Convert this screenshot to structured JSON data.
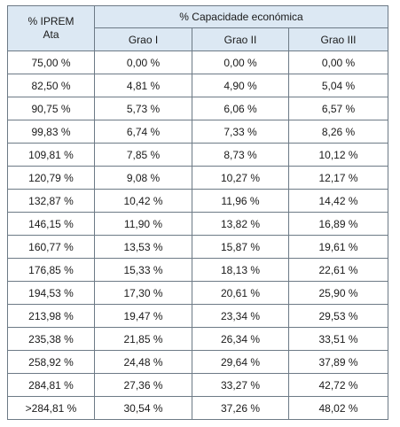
{
  "table": {
    "header": {
      "row_header_line1": "% IPREM",
      "row_header_line2": "Ata",
      "group_header": "% Capacidade económica",
      "columns": [
        "Grao I",
        "Grao II",
        "Grao III"
      ]
    },
    "rows": [
      {
        "iprem": "75,00 %",
        "grao1": "0,00 %",
        "grao2": "0,00 %",
        "grao3": "0,00 %"
      },
      {
        "iprem": "82,50 %",
        "grao1": "4,81 %",
        "grao2": "4,90 %",
        "grao3": "5,04 %"
      },
      {
        "iprem": "90,75 %",
        "grao1": "5,73 %",
        "grao2": "6,06 %",
        "grao3": "6,57 %"
      },
      {
        "iprem": "99,83 %",
        "grao1": "6,74 %",
        "grao2": "7,33 %",
        "grao3": "8,26 %"
      },
      {
        "iprem": "109,81 %",
        "grao1": "7,85 %",
        "grao2": "8,73 %",
        "grao3": "10,12 %"
      },
      {
        "iprem": "120,79 %",
        "grao1": "9,08 %",
        "grao2": "10,27 %",
        "grao3": "12,17 %"
      },
      {
        "iprem": "132,87 %",
        "grao1": "10,42 %",
        "grao2": "11,96 %",
        "grao3": "14,42 %"
      },
      {
        "iprem": "146,15 %",
        "grao1": "11,90 %",
        "grao2": "13,82 %",
        "grao3": "16,89 %"
      },
      {
        "iprem": "160,77 %",
        "grao1": "13,53 %",
        "grao2": "15,87 %",
        "grao3": "19,61 %"
      },
      {
        "iprem": "176,85 %",
        "grao1": "15,33 %",
        "grao2": "18,13 %",
        "grao3": "22,61 %"
      },
      {
        "iprem": "194,53 %",
        "grao1": "17,30 %",
        "grao2": "20,61 %",
        "grao3": "25,90 %"
      },
      {
        "iprem": "213,98 %",
        "grao1": "19,47 %",
        "grao2": "23,34 %",
        "grao3": "29,53 %"
      },
      {
        "iprem": "235,38 %",
        "grao1": "21,85 %",
        "grao2": "26,34 %",
        "grao3": "33,51 %"
      },
      {
        "iprem": "258,92 %",
        "grao1": "24,48 %",
        "grao2": "29,64 %",
        "grao3": "37,89 %"
      },
      {
        "iprem": "284,81 %",
        "grao1": "27,36 %",
        "grao2": "33,27 %",
        "grao3": "42,72 %"
      },
      {
        "iprem": ">284,81 %",
        "grao1": "30,54 %",
        "grao2": "37,26 %",
        "grao3": "48,02 %"
      }
    ]
  },
  "colors": {
    "header_background": "#dce8f3",
    "border": "#6d7a86",
    "text": "#1a1a1a"
  }
}
